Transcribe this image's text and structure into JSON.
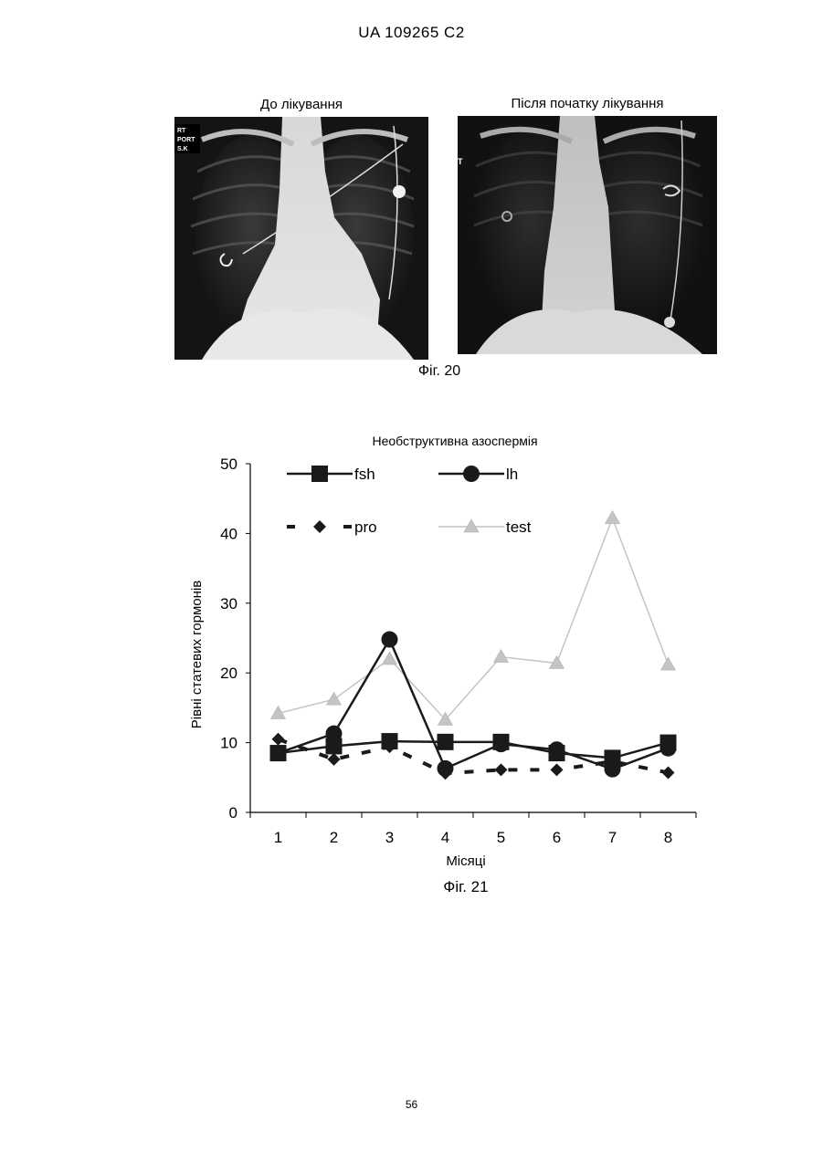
{
  "header": {
    "doc_id": "UA   109265   C2"
  },
  "fig20": {
    "left_title": "До лікування",
    "right_title": "Після початку лікування",
    "left_image_marker": [
      "RT",
      "PORT",
      "S.K"
    ],
    "right_image_marker": "T",
    "caption": "Фіг. 20"
  },
  "fig21": {
    "caption": "Фіг. 21"
  },
  "chart_data": {
    "type": "line",
    "title": "Необструктивна азоспермія",
    "xlabel": "Місяці",
    "ylabel": "Рівні статевих гормонів",
    "categories": [
      "1",
      "2",
      "3",
      "4",
      "5",
      "6",
      "7",
      "8"
    ],
    "ylim": [
      0,
      50
    ],
    "yticks": [
      0,
      10,
      20,
      30,
      40,
      50
    ],
    "grid": false,
    "legend": "top, inside plot, two columns",
    "series": [
      {
        "name": "fsh",
        "marker": "square",
        "style": "solid",
        "color": "#1a1a1a",
        "values": [
          8.5,
          9.5,
          10.2,
          10.1,
          10.1,
          8.5,
          7.8,
          10.0
        ]
      },
      {
        "name": "lh",
        "marker": "circle",
        "style": "solid",
        "color": "#1a1a1a",
        "values": [
          8.5,
          11.3,
          24.8,
          6.3,
          9.8,
          9.0,
          6.2,
          9.2
        ]
      },
      {
        "name": "pro",
        "marker": "diamond",
        "style": "dashed",
        "color": "#1a1a1a",
        "values": [
          10.5,
          7.6,
          9.4,
          5.6,
          6.1,
          6.1,
          7.3,
          5.7
        ]
      },
      {
        "name": "test",
        "marker": "triangle",
        "style": "solid",
        "color": "#c4c4c4",
        "values": [
          14.2,
          16.2,
          22.0,
          13.3,
          22.3,
          21.4,
          42.2,
          21.2
        ]
      }
    ]
  },
  "footer": {
    "page_number": "56"
  }
}
